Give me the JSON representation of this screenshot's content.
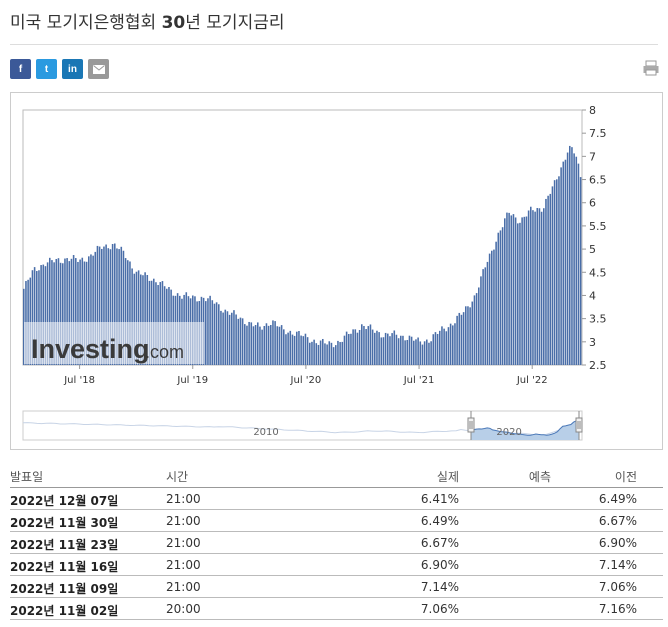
{
  "title": {
    "prefix": "미국 모기지은행협회 ",
    "bold": "30",
    "suffix": "년 모기지금리"
  },
  "share": {
    "facebook": "f",
    "twitter": "t",
    "linkedin": "in"
  },
  "colors": {
    "bar": "#4a6ea8",
    "nav_fill": "#b8cfe8",
    "nav_line": "#4a78b8"
  },
  "chart_data": {
    "type": "bar",
    "ylim": [
      2.5,
      8
    ],
    "yticks": [
      8,
      7.5,
      7,
      6.5,
      6,
      5.5,
      5,
      4.5,
      4,
      3.5,
      3,
      2.5
    ],
    "x_range": [
      2018.0,
      2022.94
    ],
    "xticks": [
      {
        "label": "Jul '18",
        "x": 2018.5
      },
      {
        "label": "Jul '19",
        "x": 2019.5
      },
      {
        "label": "Jul '20",
        "x": 2020.5
      },
      {
        "label": "Jul '21",
        "x": 2021.5
      },
      {
        "label": "Jul '22",
        "x": 2022.5
      }
    ],
    "x": [
      2018.0,
      2018.1,
      2018.2,
      2018.3,
      2018.4,
      2018.5,
      2018.6,
      2018.7,
      2018.8,
      2018.9,
      2019.0,
      2019.1,
      2019.2,
      2019.3,
      2019.4,
      2019.5,
      2019.6,
      2019.7,
      2019.8,
      2019.9,
      2020.0,
      2020.1,
      2020.2,
      2020.3,
      2020.4,
      2020.5,
      2020.6,
      2020.7,
      2020.8,
      2020.9,
      2021.0,
      2021.1,
      2021.2,
      2021.3,
      2021.4,
      2021.5,
      2021.6,
      2021.7,
      2021.8,
      2021.9,
      2022.0,
      2022.1,
      2022.2,
      2022.3,
      2022.4,
      2022.5,
      2022.6,
      2022.7,
      2022.78,
      2022.82,
      2022.85,
      2022.88,
      2022.9,
      2022.92,
      2022.94
    ],
    "values": [
      4.1,
      4.55,
      4.7,
      4.75,
      4.8,
      4.75,
      4.85,
      5.05,
      5.1,
      4.9,
      4.5,
      4.4,
      4.3,
      4.1,
      4.0,
      3.95,
      3.95,
      3.85,
      3.65,
      3.55,
      3.4,
      3.3,
      3.45,
      3.25,
      3.2,
      3.1,
      3.0,
      2.95,
      3.0,
      3.2,
      3.35,
      3.25,
      3.15,
      3.15,
      3.1,
      3.0,
      3.05,
      3.25,
      3.4,
      3.65,
      4.0,
      4.7,
      5.3,
      5.8,
      5.6,
      5.85,
      5.9,
      6.4,
      6.9,
      7.15,
      7.16,
      7.06,
      6.9,
      6.67,
      6.49
    ],
    "navigator_labels": [
      {
        "label": "2010",
        "x": 2010
      },
      {
        "label": "2020",
        "x": 2020
      }
    ],
    "watermark": "Investing",
    "watermark_suffix": ".com"
  },
  "table": {
    "headers": {
      "date": "발표일",
      "time": "시간",
      "actual": "실제",
      "forecast": "예측",
      "prev": "이전"
    },
    "rows": [
      {
        "date": "2022년 12월 07일",
        "time": "21:00",
        "actual": "6.41%",
        "forecast": "",
        "prev": "6.49%"
      },
      {
        "date": "2022년 11월 30일",
        "time": "21:00",
        "actual": "6.49%",
        "forecast": "",
        "prev": "6.67%"
      },
      {
        "date": "2022년 11월 23일",
        "time": "21:00",
        "actual": "6.67%",
        "forecast": "",
        "prev": "6.90%"
      },
      {
        "date": "2022년 11월 16일",
        "time": "21:00",
        "actual": "6.90%",
        "forecast": "",
        "prev": "7.14%"
      },
      {
        "date": "2022년 11월 09일",
        "time": "21:00",
        "actual": "7.14%",
        "forecast": "",
        "prev": "7.06%"
      },
      {
        "date": "2022년 11월 02일",
        "time": "20:00",
        "actual": "7.06%",
        "forecast": "",
        "prev": "7.16%"
      }
    ]
  }
}
